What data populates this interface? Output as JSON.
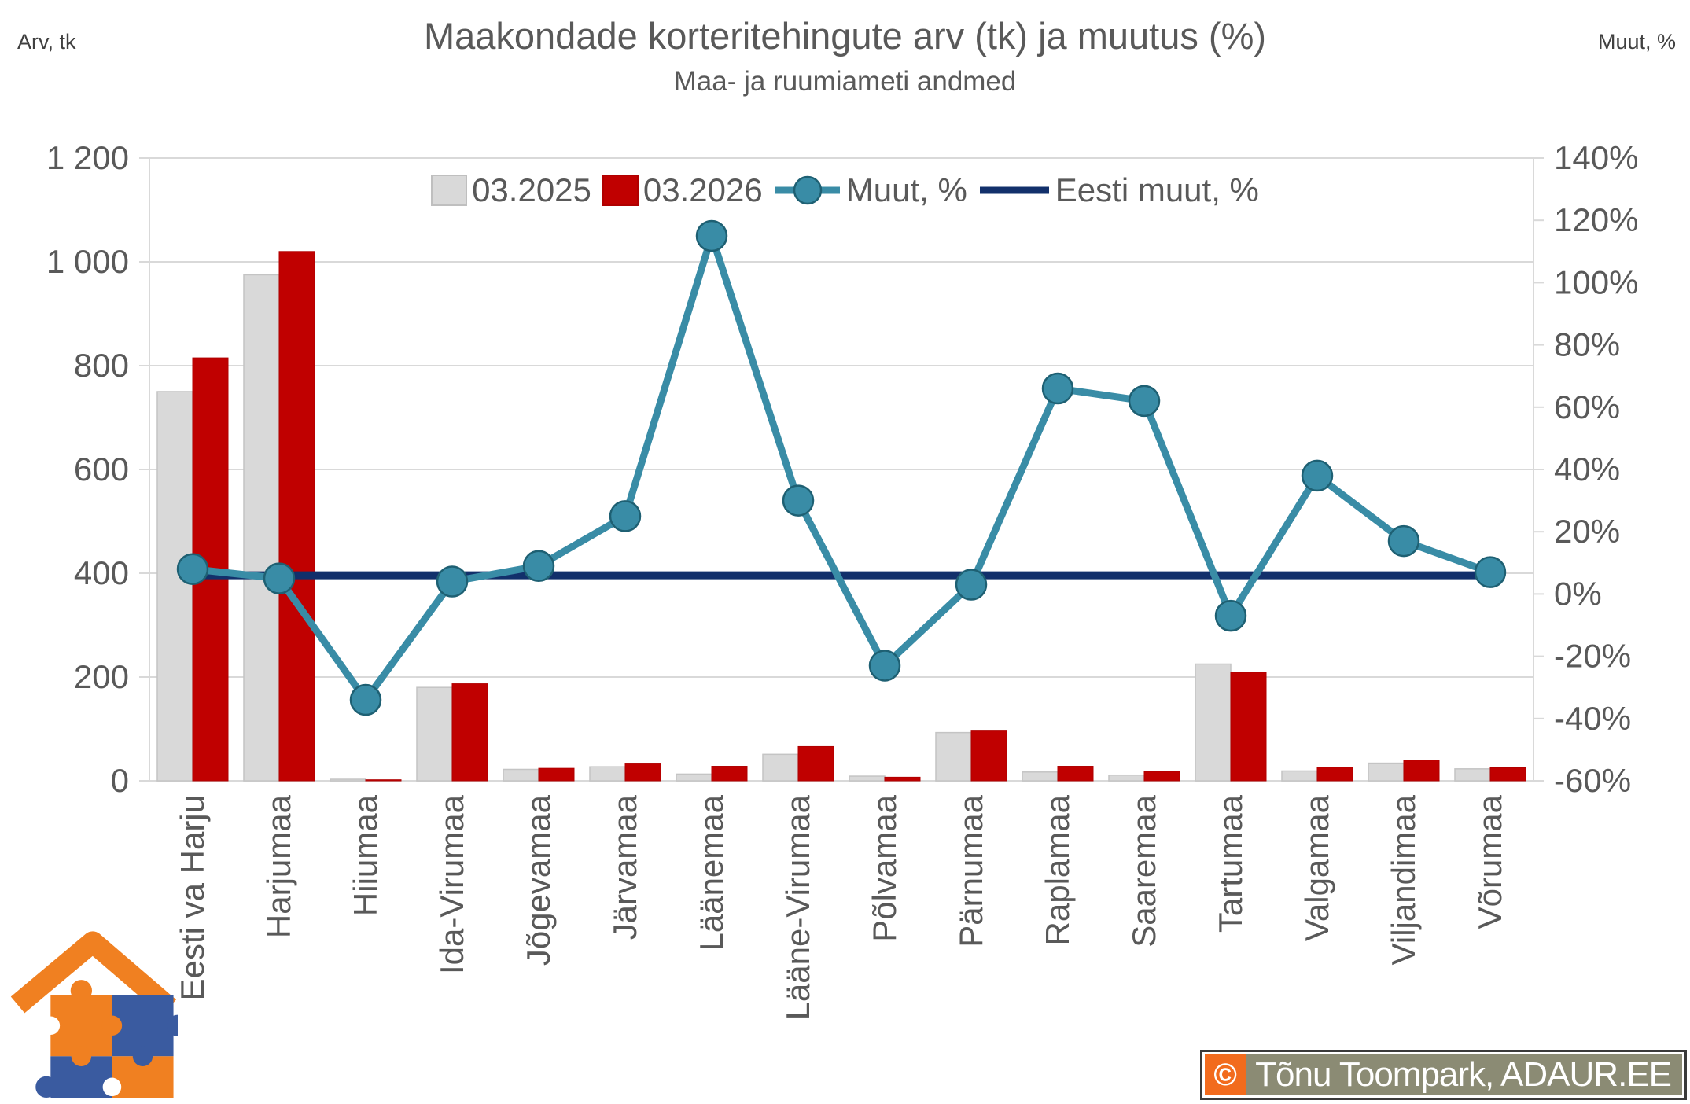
{
  "header": {
    "title": "Maakondade korteritehingute arv (tk) ja muutus (%)",
    "subtitle": "Maa- ja ruumiameti andmed",
    "left_axis_corner_label": "Arv, tk",
    "right_axis_corner_label": "Muut, %"
  },
  "legend": {
    "items": [
      {
        "label": "03.2025",
        "swatch": "box",
        "color": "#D9D9D9",
        "border": "#BFBFBF"
      },
      {
        "label": "03.2026",
        "swatch": "box",
        "color": "#C00000",
        "border": "#B00000"
      },
      {
        "label": "Muut, %",
        "swatch": "line-marker",
        "color": "#398CA6",
        "marker_stroke": "#1E6073"
      },
      {
        "label": "Eesti muut, %",
        "swatch": "line",
        "color": "#12306B"
      }
    ]
  },
  "chart_data": {
    "type": "bar",
    "subtype": "combo-bar-line-dual-axis",
    "title": "Maakondade korteritehingute arv (tk) ja muutus (%)",
    "subtitle": "Maa- ja ruumiameti andmed",
    "grid": "horizontal",
    "legend_position": "top",
    "categories": [
      "Eesti va Harju",
      "Harjumaa",
      "Hiiumaa",
      "Ida-Virumaa",
      "Jõgevamaa",
      "Järvamaa",
      "Läänemaa",
      "Lääne-Virumaa",
      "Põlvamaa",
      "Pärnumaa",
      "Raplamaa",
      "Saaremaa",
      "Tartumaa",
      "Valgamaa",
      "Viljandimaa",
      "Võrumaa"
    ],
    "series": [
      {
        "name": "03.2025",
        "type": "bar",
        "axis": "left",
        "color": "#D9D9D9",
        "border": "#C4C4C4",
        "values": [
          750,
          975,
          3,
          180,
          22,
          27,
          13,
          51,
          9,
          93,
          17,
          11,
          225,
          19,
          34,
          23
        ]
      },
      {
        "name": "03.2026",
        "type": "bar",
        "axis": "left",
        "color": "#C00000",
        "border": "#B00000",
        "values": [
          815,
          1020,
          2,
          187,
          24,
          34,
          28,
          66,
          7,
          96,
          28,
          18,
          209,
          26,
          40,
          25
        ]
      },
      {
        "name": "Muut, %",
        "type": "line",
        "axis": "right",
        "color": "#398CA6",
        "marker": "circle",
        "marker_stroke": "#1E6073",
        "values": [
          8,
          5,
          -34,
          4,
          9,
          25,
          115,
          30,
          -23,
          3,
          66,
          62,
          -7,
          38,
          17,
          7
        ]
      },
      {
        "name": "Eesti muut, %",
        "type": "line",
        "axis": "right",
        "color": "#12306B",
        "values": [
          6,
          6,
          6,
          6,
          6,
          6,
          6,
          6,
          6,
          6,
          6,
          6,
          6,
          6,
          6,
          6
        ]
      }
    ],
    "left_axis": {
      "title": "Arv, tk",
      "min": 0,
      "max": 1200,
      "step": 200,
      "tick_labels": [
        "0",
        "200",
        "400",
        "600",
        "800",
        "1 000",
        "1 200"
      ]
    },
    "right_axis": {
      "title": "Muut, %",
      "min": -60,
      "max": 140,
      "step": 20,
      "tick_labels": [
        "-60%",
        "-40%",
        "-20%",
        "0%",
        "20%",
        "40%",
        "60%",
        "80%",
        "100%",
        "120%",
        "140%"
      ]
    }
  },
  "watermark": {
    "copyright_symbol": "©",
    "text": "Tõnu Toompark, ADAUR.EE",
    "bar_color": "#8B8B74",
    "accent_color": "#F26B1D"
  },
  "logo": {
    "name": "adaur-house-puzzle-logo",
    "orange": "#F08021",
    "blue": "#3A5BA0"
  },
  "style_colors": {
    "text": "#595959",
    "grid": "#D9D9D9",
    "axis": "#C9C9C9"
  }
}
